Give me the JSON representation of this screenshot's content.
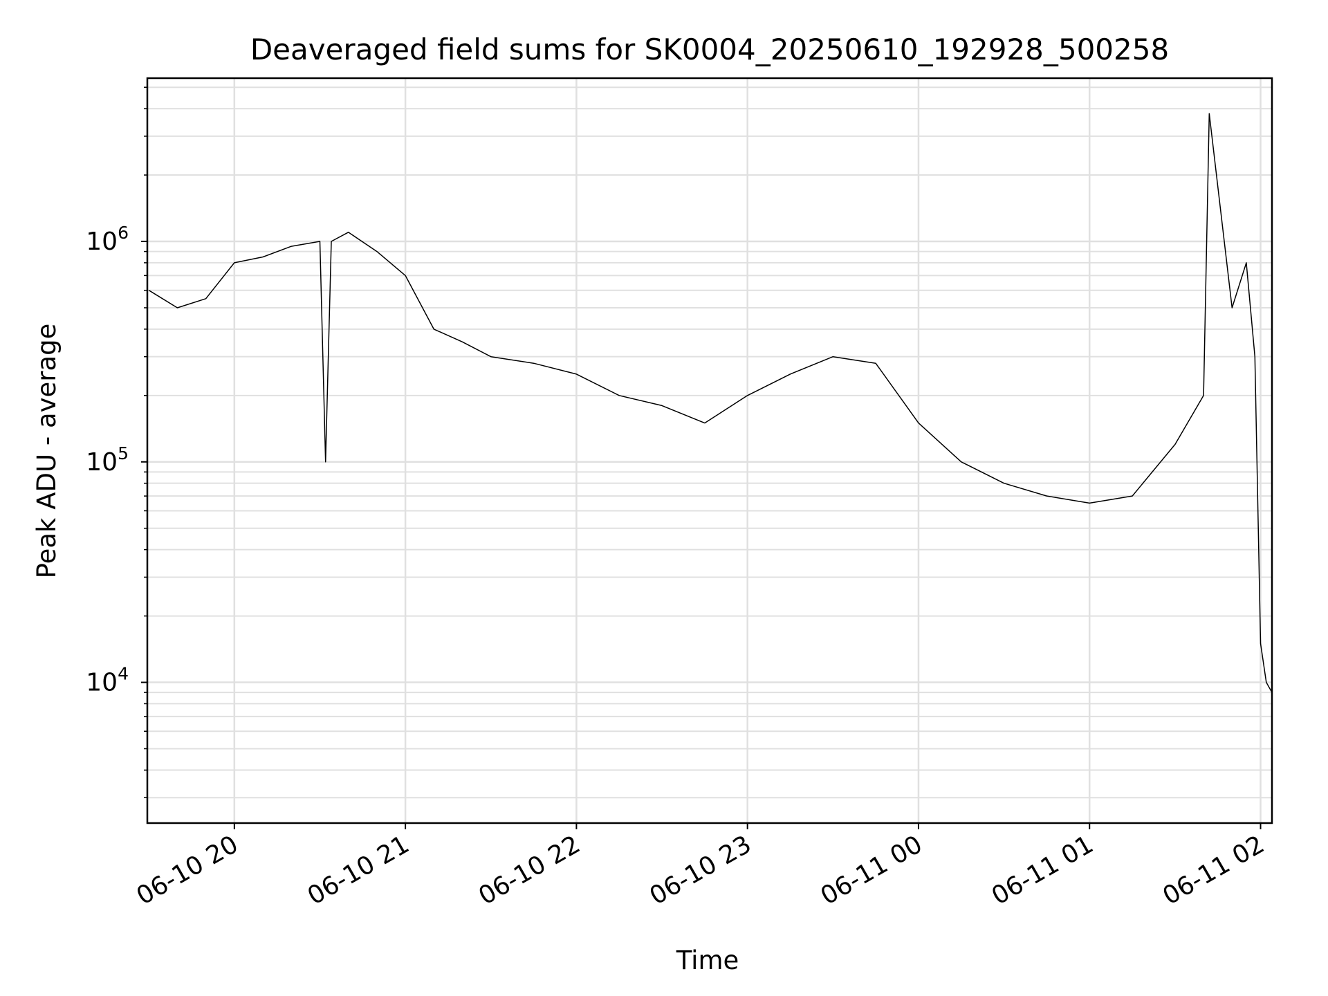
{
  "chart_data": {
    "type": "line",
    "title": "Deaveraged field sums for SK0004_20250610_192928_500258",
    "xlabel": "Time",
    "ylabel": "Peak ADU - average",
    "yscale": "log",
    "ylim": [
      2300,
      5500000
    ],
    "xlim": [
      "2025-06-10 19:29:28",
      "2025-06-11 02:04:00"
    ],
    "grid": true,
    "line_color": "#000000",
    "grid_color": "#e0e0e0",
    "x_ticks": [
      "06-10 20",
      "06-10 21",
      "06-10 22",
      "06-10 23",
      "06-11 00",
      "06-11 01",
      "06-11 02"
    ],
    "y_ticks": [
      {
        "base": "10",
        "exp": "4",
        "value": 10000
      },
      {
        "base": "10",
        "exp": "5",
        "value": 100000
      },
      {
        "base": "10",
        "exp": "6",
        "value": 1000000
      }
    ],
    "series": [
      {
        "x": [
          "2025-06-10 19:30",
          "2025-06-10 19:40",
          "2025-06-10 19:50",
          "2025-06-10 20:00",
          "2025-06-10 20:10",
          "2025-06-10 20:20",
          "2025-06-10 20:30",
          "2025-06-10 20:32",
          "2025-06-10 20:34",
          "2025-06-10 20:40",
          "2025-06-10 20:50",
          "2025-06-10 21:00",
          "2025-06-10 21:10",
          "2025-06-10 21:20",
          "2025-06-10 21:30",
          "2025-06-10 21:45",
          "2025-06-10 22:00",
          "2025-06-10 22:15",
          "2025-06-10 22:30",
          "2025-06-10 22:45",
          "2025-06-10 23:00",
          "2025-06-10 23:15",
          "2025-06-10 23:30",
          "2025-06-10 23:45",
          "2025-06-11 00:00",
          "2025-06-11 00:15",
          "2025-06-11 00:30",
          "2025-06-11 00:45",
          "2025-06-11 01:00",
          "2025-06-11 01:15",
          "2025-06-11 01:30",
          "2025-06-11 01:40",
          "2025-06-11 01:42",
          "2025-06-11 01:50",
          "2025-06-11 01:55",
          "2025-06-11 01:58",
          "2025-06-11 02:00",
          "2025-06-11 02:02",
          "2025-06-11 02:04"
        ],
        "y": [
          600000,
          500000,
          550000,
          800000,
          850000,
          950000,
          1000000,
          100000,
          1000000,
          1100000,
          900000,
          700000,
          400000,
          350000,
          300000,
          280000,
          250000,
          200000,
          180000,
          150000,
          200000,
          250000,
          300000,
          280000,
          150000,
          100000,
          80000,
          70000,
          65000,
          70000,
          120000,
          200000,
          3800000,
          500000,
          800000,
          300000,
          15000,
          10000,
          9000
        ]
      }
    ]
  }
}
